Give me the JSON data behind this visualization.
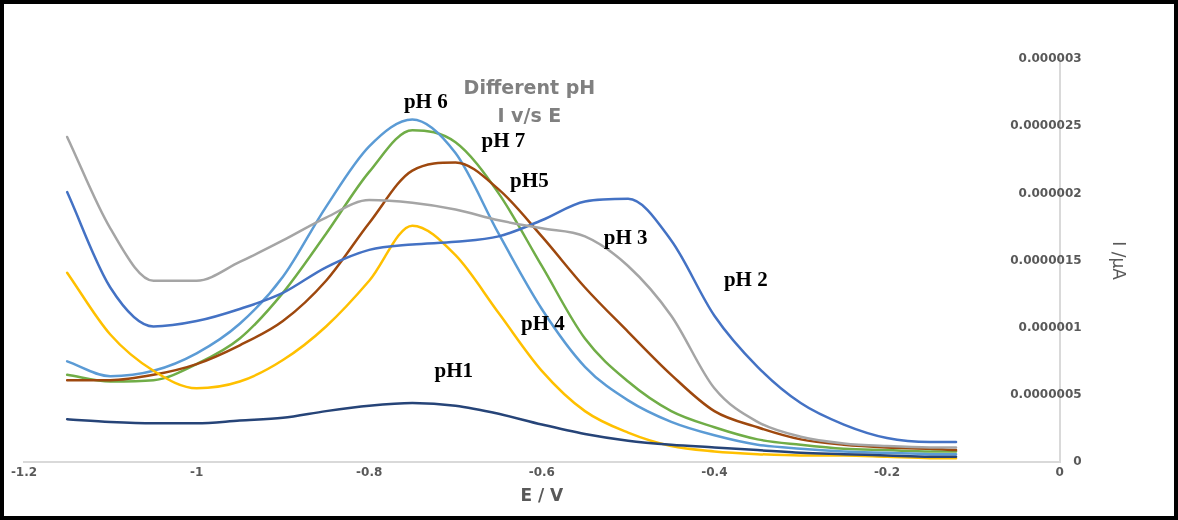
{
  "chart_data": {
    "type": "line",
    "title": "Different pH",
    "subtitle": "I v/s E",
    "xlabel": "E / V",
    "ylabel": "I /μA",
    "x": [
      -1.15,
      -1.1,
      -1.05,
      -1.0,
      -0.95,
      -0.9,
      -0.85,
      -0.8,
      -0.75,
      -0.7,
      -0.65,
      -0.6,
      -0.55,
      -0.5,
      -0.45,
      -0.4,
      -0.35,
      -0.3,
      -0.25,
      -0.2,
      -0.15,
      -0.12
    ],
    "series": [
      {
        "color": "#264478",
        "values": [
          3.2e-07,
          3e-07,
          2.9e-07,
          2.9e-07,
          3.1e-07,
          3.3e-07,
          3.8e-07,
          4.2e-07,
          4.4e-07,
          4.2e-07,
          3.6e-07,
          2.8e-07,
          2.1e-07,
          1.6e-07,
          1.3e-07,
          1.1e-07,
          9e-08,
          7e-08,
          6e-08,
          5e-08,
          4e-08,
          4e-08
        ]
      },
      {
        "color": "#a5a5a5",
        "values": [
          2.42e-06,
          1.74e-06,
          1.35e-06,
          1.35e-06,
          1.49e-06,
          1.65e-06,
          1.82e-06,
          1.95e-06,
          1.93e-06,
          1.88e-06,
          1.8e-06,
          1.74e-06,
          1.68e-06,
          1.46e-06,
          1.09e-06,
          5.5e-07,
          3e-07,
          1.9e-07,
          1.4e-07,
          1.2e-07,
          1.1e-07,
          1.1e-07
        ]
      },
      {
        "color": "#4472c4",
        "values": [
          2.01e-06,
          1.3e-06,
          1.01e-06,
          1.05e-06,
          1.14e-06,
          1.26e-06,
          1.45e-06,
          1.58e-06,
          1.62e-06,
          1.64e-06,
          1.68e-06,
          1.8e-06,
          1.94e-06,
          1.96e-06,
          1.65e-06,
          1.09e-06,
          7.1e-07,
          4.4e-07,
          2.8e-07,
          1.8e-07,
          1.5e-07,
          1.5e-07
        ]
      },
      {
        "color": "#ffc000",
        "values": [
          1.41e-06,
          9.5e-07,
          6.8e-07,
          5.5e-07,
          6e-07,
          7.6e-07,
          1.01e-06,
          1.35e-06,
          1.76e-06,
          1.54e-06,
          1.11e-06,
          6.8e-07,
          3.8e-07,
          2.2e-07,
          1.2e-07,
          8e-08,
          6e-08,
          5e-08,
          5e-08,
          4e-08,
          3e-08,
          3e-08
        ]
      },
      {
        "color": "#9e480e",
        "values": [
          6.1e-07,
          6.1e-07,
          6.5e-07,
          7.3e-07,
          8.7e-07,
          1.05e-06,
          1.35e-06,
          1.78e-06,
          2.17e-06,
          2.23e-06,
          2.03e-06,
          1.68e-06,
          1.3e-06,
          9.7e-07,
          6.5e-07,
          3.8e-07,
          2.6e-07,
          1.7e-07,
          1.3e-07,
          1.1e-07,
          1e-07,
          9e-08
        ]
      },
      {
        "color": "#5b9bd5",
        "values": [
          7.5e-07,
          6.4e-07,
          6.8e-07,
          8.1e-07,
          1.03e-06,
          1.38e-06,
          1.9e-06,
          2.35e-06,
          2.55e-06,
          2.3e-06,
          1.7e-06,
          1.14e-06,
          7.1e-07,
          4.6e-07,
          3e-07,
          2e-07,
          1.3e-07,
          1e-07,
          8e-08,
          7e-08,
          6e-08,
          6e-08
        ]
      },
      {
        "color": "#70ad47",
        "values": [
          6.5e-07,
          6e-07,
          6.1e-07,
          7.3e-07,
          9.2e-07,
          1.26e-06,
          1.7e-06,
          2.16e-06,
          2.47e-06,
          2.38e-06,
          2e-06,
          1.46e-06,
          9.2e-07,
          6e-07,
          3.8e-07,
          2.6e-07,
          1.7e-07,
          1.3e-07,
          1e-07,
          9e-08,
          8e-08,
          8e-08
        ]
      }
    ],
    "xlim": [
      -1.2,
      0
    ],
    "xticks": [
      -1.2,
      -1,
      -0.8,
      -0.6,
      -0.4,
      -0.2,
      0
    ],
    "ylim": [
      0,
      3e-06
    ],
    "yticks": [
      0,
      {
        "value": 5e-07,
        "label": "0.0000005"
      },
      {
        "value": 1e-06,
        "label": "0.000001"
      },
      {
        "value": 1.5e-06,
        "label": "0.0000015"
      },
      {
        "value": 2e-06,
        "label": "0.000002"
      },
      {
        "value": 2.5e-06,
        "label": "0.0000025"
      },
      {
        "value": 3e-06,
        "label": "0.000003"
      }
    ],
    "annotations": [
      "pH 6",
      "pH 7",
      "pH5",
      "pH 3",
      "pH 2",
      "pH 4",
      "pH1"
    ],
    "grid": false,
    "legend": false,
    "marker": "none",
    "line_style": "solid"
  }
}
